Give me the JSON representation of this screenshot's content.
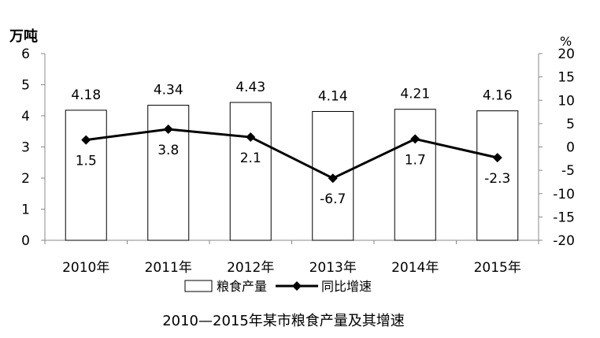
{
  "chart_data": {
    "type": "bar",
    "title": "2010—2015年某市粮食产量及其增速",
    "categories": [
      "2010年",
      "2011年",
      "2012年",
      "2013年",
      "2014年",
      "2015年"
    ],
    "left_axis": {
      "unit": "万吨",
      "ylim": [
        0,
        6
      ],
      "ticks": [
        "0",
        "1",
        "2",
        "3",
        "4",
        "5",
        "6"
      ]
    },
    "right_axis": {
      "unit": "%",
      "ylim": [
        -20,
        20
      ],
      "ticks": [
        "20",
        "15",
        "10",
        "5",
        "0",
        "-5",
        "-10",
        "-15",
        "-20"
      ]
    },
    "series": [
      {
        "name": "粮食产量",
        "kind": "bar",
        "axis": "left",
        "values": [
          4.18,
          4.34,
          4.43,
          4.14,
          4.21,
          4.16
        ],
        "labels": [
          "4.18",
          "4.34",
          "4.43",
          "4.14",
          "4.21",
          "4.16"
        ]
      },
      {
        "name": "同比增速",
        "kind": "line",
        "axis": "right",
        "marker": "diamond",
        "values": [
          1.5,
          3.8,
          2.1,
          -6.7,
          1.7,
          -2.3
        ],
        "labels": [
          "1.5",
          "3.8",
          "2.1",
          "-6.7",
          "1.7",
          "-2.3"
        ]
      }
    ],
    "grid": false,
    "legend": "bottom-center",
    "colors": {
      "bar_fill": "#ffffff",
      "bar_stroke": "#000000",
      "line": "#000000",
      "axis": "#888888"
    }
  }
}
